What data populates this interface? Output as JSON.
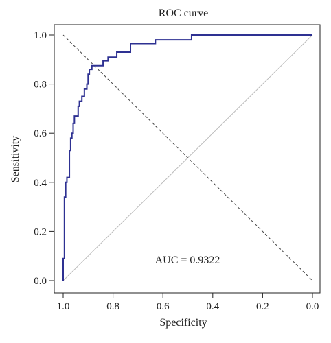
{
  "chart_data": {
    "type": "line",
    "title": "ROC curve",
    "xlabel": "Specificity",
    "ylabel": "Sensitivity",
    "xlim": [
      1.0,
      0.0
    ],
    "ylim": [
      0.0,
      1.0
    ],
    "x_reversed": true,
    "x_ticks": [
      1.0,
      0.8,
      0.6,
      0.4,
      0.2,
      0.0
    ],
    "x_tick_labels": [
      "1.0",
      "0.8",
      "0.6",
      "0.4",
      "0.2",
      "0.0"
    ],
    "y_ticks": [
      0.0,
      0.2,
      0.4,
      0.6,
      0.8,
      1.0
    ],
    "y_tick_labels": [
      "0.0",
      "0.2",
      "0.4",
      "0.6",
      "0.8",
      "1.0"
    ],
    "grid": false,
    "annotation": "AUC = 0.9322",
    "series": [
      {
        "color": "#2e3192",
        "x": [
          1.0,
          1.0,
          0.995,
          0.995,
          0.99,
          0.99,
          0.985,
          0.985,
          0.975,
          0.975,
          0.97,
          0.97,
          0.965,
          0.965,
          0.96,
          0.96,
          0.955,
          0.955,
          0.94,
          0.94,
          0.935,
          0.935,
          0.925,
          0.925,
          0.915,
          0.915,
          0.905,
          0.905,
          0.9,
          0.9,
          0.895,
          0.895,
          0.885,
          0.885,
          0.84,
          0.84,
          0.82,
          0.82,
          0.785,
          0.785,
          0.73,
          0.73,
          0.63,
          0.63,
          0.485,
          0.485,
          0.0
        ],
        "y": [
          0.0,
          0.09,
          0.09,
          0.34,
          0.34,
          0.4,
          0.4,
          0.42,
          0.42,
          0.53,
          0.53,
          0.58,
          0.58,
          0.6,
          0.6,
          0.64,
          0.64,
          0.67,
          0.67,
          0.71,
          0.71,
          0.73,
          0.73,
          0.75,
          0.75,
          0.78,
          0.78,
          0.8,
          0.8,
          0.84,
          0.84,
          0.86,
          0.86,
          0.875,
          0.875,
          0.895,
          0.895,
          0.91,
          0.91,
          0.93,
          0.93,
          0.965,
          0.965,
          0.98,
          0.98,
          1.0,
          1.0
        ]
      }
    ],
    "reference_lines": [
      {
        "x": [
          1.0,
          0.0
        ],
        "y": [
          0.0,
          1.0
        ],
        "style": "solid",
        "color": "#bbbbbb"
      },
      {
        "x": [
          1.0,
          0.0
        ],
        "y": [
          1.0,
          0.0
        ],
        "style": "dashed",
        "color": "#444444"
      }
    ]
  }
}
